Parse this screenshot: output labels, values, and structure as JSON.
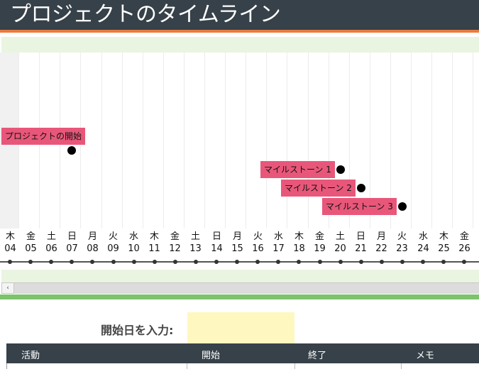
{
  "header": {
    "title": "プロジェクトのタイムライン"
  },
  "timeline": {
    "days": [
      {
        "weekday": "木",
        "day": "04"
      },
      {
        "weekday": "金",
        "day": "05"
      },
      {
        "weekday": "土",
        "day": "06"
      },
      {
        "weekday": "日",
        "day": "07"
      },
      {
        "weekday": "月",
        "day": "08"
      },
      {
        "weekday": "火",
        "day": "09"
      },
      {
        "weekday": "水",
        "day": "10"
      },
      {
        "weekday": "木",
        "day": "11"
      },
      {
        "weekday": "金",
        "day": "12"
      },
      {
        "weekday": "土",
        "day": "13"
      },
      {
        "weekday": "日",
        "day": "14"
      },
      {
        "weekday": "月",
        "day": "15"
      },
      {
        "weekday": "火",
        "day": "16"
      },
      {
        "weekday": "水",
        "day": "17"
      },
      {
        "weekday": "木",
        "day": "18"
      },
      {
        "weekday": "金",
        "day": "19"
      },
      {
        "weekday": "土",
        "day": "20"
      },
      {
        "weekday": "日",
        "day": "21"
      },
      {
        "weekday": "月",
        "day": "22"
      },
      {
        "weekday": "火",
        "day": "23"
      },
      {
        "weekday": "水",
        "day": "24"
      },
      {
        "weekday": "木",
        "day": "25"
      },
      {
        "weekday": "金",
        "day": "26"
      }
    ],
    "milestones": [
      {
        "label": "プロジェクトの開始",
        "day": "07"
      },
      {
        "label": "マイルストーン 1",
        "day": "20"
      },
      {
        "label": "マイルストーン 2",
        "day": "21"
      },
      {
        "label": "マイルストーン 3",
        "day": "23"
      }
    ],
    "flag_color": "#e8577a"
  },
  "form": {
    "start_label": "開始日を入力:",
    "start_value": ""
  },
  "table": {
    "headers": [
      "活動",
      "開始",
      "終了",
      "メモ"
    ]
  },
  "colors": {
    "header_bg": "#364149",
    "accent": "#ea7a3d",
    "band": "#eaf5e1",
    "input_bg": "#fff7c0",
    "green": "#7cc36b"
  }
}
